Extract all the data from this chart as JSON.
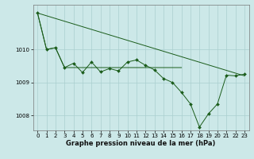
{
  "title": "Graphe pression niveau de la mer (hPa)",
  "background_color": "#cce8e8",
  "grid_color": "#aacfcf",
  "line_color": "#1a5c1a",
  "marker_color": "#1a5c1a",
  "xlim": [
    -0.5,
    23.5
  ],
  "ylim": [
    1007.55,
    1011.35
  ],
  "yticks": [
    1008,
    1009,
    1010
  ],
  "xticks": [
    0,
    1,
    2,
    3,
    4,
    5,
    6,
    7,
    8,
    9,
    10,
    11,
    12,
    13,
    14,
    15,
    16,
    17,
    18,
    19,
    20,
    21,
    22,
    23
  ],
  "line1_x": [
    0,
    1,
    2,
    3,
    16
  ],
  "line1_y": [
    1011.1,
    1010.0,
    1010.05,
    1009.45,
    1009.45
  ],
  "line2_x": [
    0,
    23
  ],
  "line2_y": [
    1011.1,
    1009.2
  ],
  "main_x": [
    0,
    1,
    2,
    3,
    4,
    5,
    6,
    7,
    8,
    9,
    10,
    11,
    12,
    13,
    14,
    15,
    16,
    17,
    18,
    19,
    20,
    21,
    22,
    23
  ],
  "main_y": [
    1011.1,
    1010.0,
    1010.05,
    1009.45,
    1009.58,
    1009.3,
    1009.62,
    1009.32,
    1009.42,
    1009.35,
    1009.62,
    1009.68,
    1009.52,
    1009.38,
    1009.12,
    1009.0,
    1008.7,
    1008.35,
    1007.65,
    1008.05,
    1008.35,
    1009.22,
    1009.2,
    1009.25
  ],
  "xlabel_fontsize": 6,
  "tick_fontsize": 5
}
